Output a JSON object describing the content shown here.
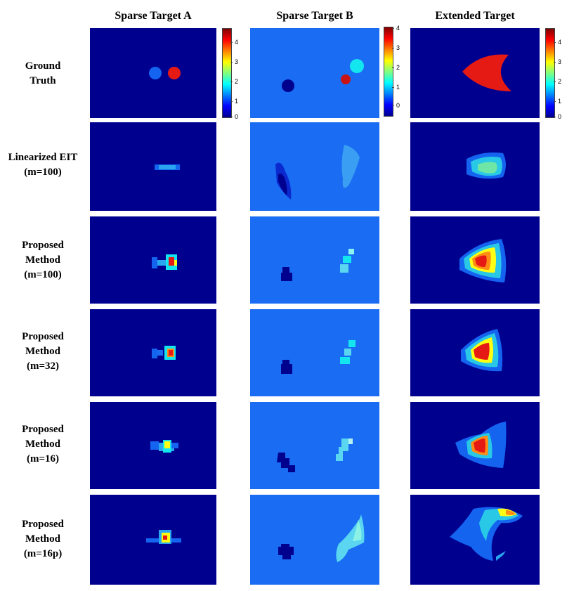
{
  "columns": [
    "Sparse Target A",
    "Sparse Target B",
    "Extended Target"
  ],
  "rows": [
    {
      "label_lines": [
        "Ground",
        "Truth"
      ]
    },
    {
      "label_lines": [
        "Linearized EIT",
        "(m=100)"
      ]
    },
    {
      "label_lines": [
        "Proposed",
        "Method",
        "(m=100)"
      ]
    },
    {
      "label_lines": [
        "Proposed",
        "Method",
        "(m=32)"
      ]
    },
    {
      "label_lines": [
        "Proposed",
        "Method",
        "(m=16)"
      ]
    },
    {
      "label_lines": [
        "Proposed",
        "Method",
        "(m=16p)"
      ]
    }
  ],
  "colorbars": {
    "a": {
      "ticks": [
        "4",
        "3",
        "2",
        "1",
        "0"
      ]
    },
    "b": {
      "ticks": [
        "4",
        "3",
        "2",
        "1",
        "0"
      ]
    },
    "c": {
      "ticks": [
        "4",
        "3",
        "2",
        "1",
        "0"
      ]
    }
  },
  "colors": {
    "background_dark": "#00008f",
    "background_light": "#1a6cf2",
    "red": "#e61a14",
    "cyan": "#14e6f0",
    "mid_blue": "#1464f0"
  }
}
